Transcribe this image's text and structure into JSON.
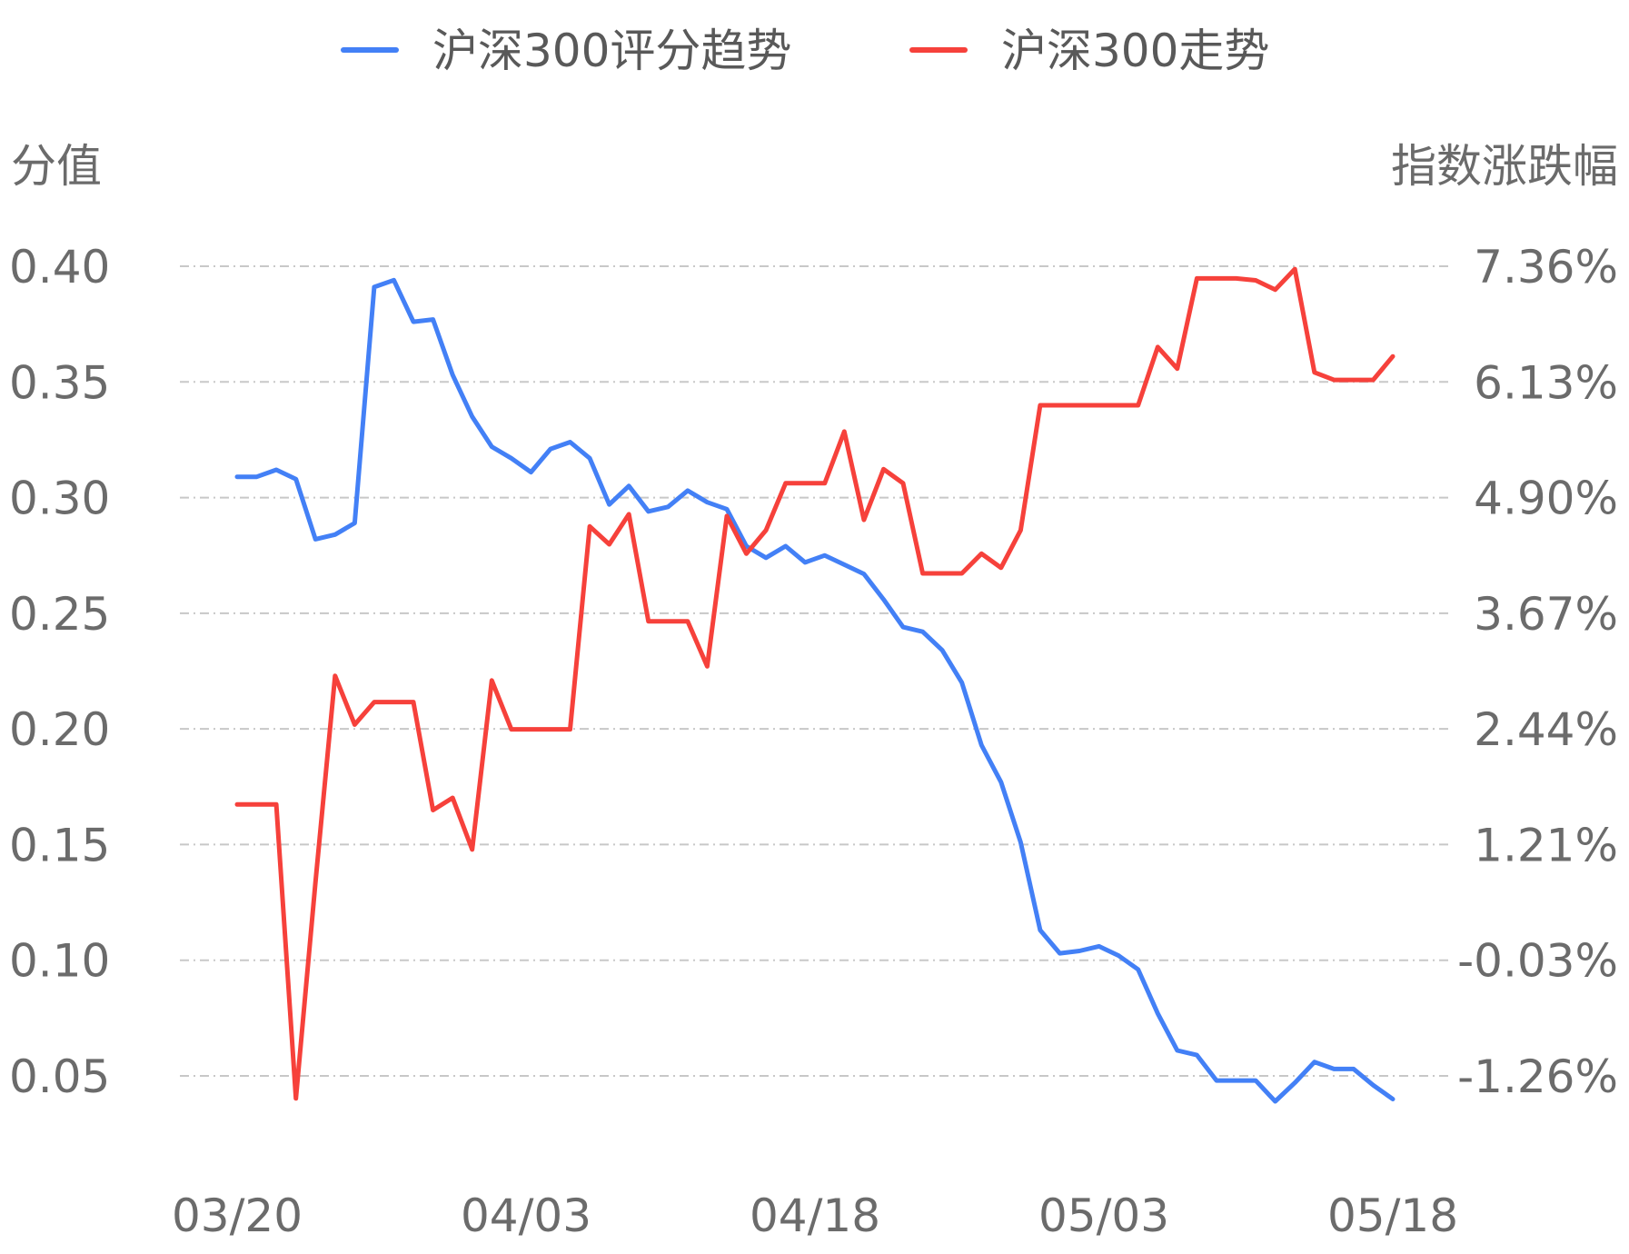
{
  "chart_data": {
    "type": "line",
    "title": "",
    "legend": {
      "position": "top-center",
      "items": [
        {
          "label": "沪深300评分趋势",
          "color": "#4380f6"
        },
        {
          "label": "沪深300走势",
          "color": "#f6413b"
        }
      ]
    },
    "ylabel_left": "分值",
    "ylabel_right": "指数涨跌幅",
    "y_left_ticks": [
      "0.40",
      "0.35",
      "0.30",
      "0.25",
      "0.20",
      "0.15",
      "0.10",
      "0.05"
    ],
    "y_right_ticks": [
      "7.36%",
      "6.13%",
      "4.90%",
      "3.67%",
      "2.44%",
      "1.21%",
      "-0.03%",
      "-1.26%"
    ],
    "ylim_left": [
      0.05,
      0.4
    ],
    "ylim_right": [
      -1.26,
      7.36
    ],
    "x_ticks": [
      "03/20",
      "04/03",
      "04/18",
      "05/03",
      "05/18"
    ],
    "grid": true,
    "series": [
      {
        "name": "沪深300评分趋势",
        "axis": "left",
        "color": "#4380f6",
        "values": [
          0.309,
          0.309,
          0.312,
          0.308,
          0.282,
          0.284,
          0.289,
          0.391,
          0.394,
          0.376,
          0.377,
          0.353,
          0.335,
          0.322,
          0.317,
          0.311,
          0.321,
          0.324,
          0.317,
          0.297,
          0.305,
          0.294,
          0.296,
          0.303,
          0.298,
          0.295,
          0.279,
          0.274,
          0.279,
          0.272,
          0.275,
          0.271,
          0.267,
          0.256,
          0.244,
          0.242,
          0.234,
          0.22,
          0.193,
          0.177,
          0.151,
          0.113,
          0.103,
          0.104,
          0.106,
          0.102,
          0.096,
          0.077,
          0.061,
          0.059,
          0.048,
          0.048,
          0.048,
          0.039,
          0.047,
          0.056,
          0.053,
          0.053,
          0.046,
          0.04
        ]
      },
      {
        "name": "沪深300走势",
        "axis": "right",
        "color": "#f6413b",
        "values": [
          1.63,
          1.63,
          1.63,
          -1.5,
          0.8,
          3.0,
          2.48,
          2.72,
          2.72,
          2.72,
          1.57,
          1.7,
          1.15,
          2.95,
          2.43,
          2.43,
          2.43,
          2.43,
          4.59,
          4.4,
          4.72,
          3.58,
          3.58,
          3.58,
          3.1,
          4.7,
          4.3,
          4.55,
          5.05,
          5.05,
          5.05,
          5.6,
          4.66,
          5.2,
          5.05,
          4.09,
          4.09,
          4.09,
          4.3,
          4.15,
          4.55,
          5.88,
          5.88,
          5.88,
          5.88,
          5.88,
          5.88,
          6.5,
          6.27,
          7.23,
          7.23,
          7.23,
          7.21,
          7.11,
          7.33,
          6.23,
          6.15,
          6.15,
          6.15,
          6.4
        ]
      }
    ]
  }
}
